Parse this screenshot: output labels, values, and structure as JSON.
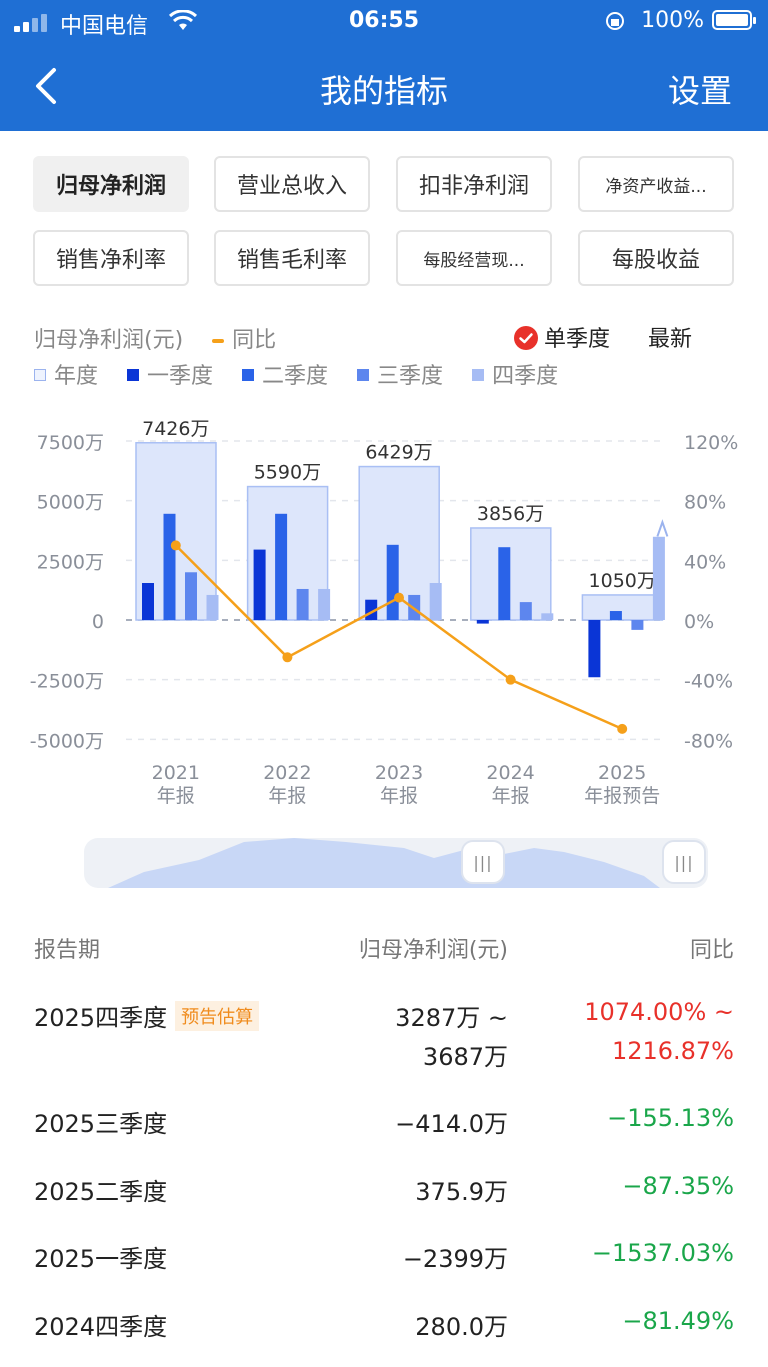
{
  "status_bar": {
    "carrier": "中国电信",
    "time": "06:55",
    "battery": "100%"
  },
  "nav": {
    "title": "我的指标",
    "settings_label": "设置"
  },
  "tabs": [
    {
      "label": "归母净利润",
      "active": true
    },
    {
      "label": "营业总收入"
    },
    {
      "label": "扣非净利润"
    },
    {
      "label": "净资产收益..."
    },
    {
      "label": "销售净利率"
    },
    {
      "label": "销售毛利率"
    },
    {
      "label": "每股经营现..."
    },
    {
      "label": "每股收益"
    }
  ],
  "legend": {
    "metric_label": "归母净利润(元)",
    "yoy_label": "同比",
    "single_quarter_label": "单季度",
    "latest_label": "最新",
    "items": [
      "年度",
      "一季度",
      "二季度",
      "三季度",
      "四季度"
    ]
  },
  "colors": {
    "header": "#1f6fd4",
    "annual": "#dde6fb",
    "q1": "#0a35d6",
    "q2": "#2a63e8",
    "q3": "#5d86ee",
    "q4": "#a6bcf4",
    "yoy_line": "#f5a01a",
    "red": "#e8312a",
    "green": "#1aa64a"
  },
  "chart_data": {
    "type": "bar",
    "categories": [
      "2021年报",
      "2022年报",
      "2023年报",
      "2024年报",
      "2025年报预告"
    ],
    "category_years": [
      "2021",
      "2022",
      "2023",
      "2024",
      "2025"
    ],
    "category_suffix": [
      "年报",
      "年报",
      "年报",
      "年报",
      "年报预告"
    ],
    "annual_labels": [
      "7426万",
      "5590万",
      "6429万",
      "3856万",
      "1050万"
    ],
    "series": [
      {
        "name": "年度",
        "values": [
          7426,
          5590,
          6429,
          3856,
          1050
        ]
      },
      {
        "name": "一季度",
        "values": [
          1550,
          2950,
          850,
          -150,
          -2399
        ]
      },
      {
        "name": "二季度",
        "values": [
          4450,
          4450,
          3150,
          3050,
          375.9
        ]
      },
      {
        "name": "三季度",
        "values": [
          2000,
          1300,
          1050,
          750,
          -414.0
        ]
      },
      {
        "name": "四季度",
        "values": [
          1050,
          1300,
          1550,
          280.0,
          3487
        ]
      },
      {
        "name": "同比",
        "axis": "right",
        "values": [
          50,
          -25,
          15,
          -40,
          -73
        ]
      }
    ],
    "ylim": [
      -5000,
      7500
    ],
    "y_ticks": [
      "7500万",
      "5000万",
      "2500万",
      "0",
      "-2500万",
      "-5000万"
    ],
    "y2lim": [
      -80,
      120
    ],
    "y2_ticks": [
      "120%",
      "80%",
      "40%",
      "0%",
      "-40%",
      "-80%"
    ],
    "grid": true
  },
  "table": {
    "headers": [
      "报告期",
      "归母净利润(元)",
      "同比"
    ],
    "rows": [
      {
        "period": "2025四季度",
        "badge": "预告估算",
        "value_line1": "3287万 ~",
        "value_line2": "3687万",
        "yoy_line1": "1074.00% ~",
        "yoy_line2": "1216.87%",
        "trend": "up"
      },
      {
        "period": "2025三季度",
        "value_line1": "−414.0万",
        "yoy_line1": "−155.13%",
        "trend": "down"
      },
      {
        "period": "2025二季度",
        "value_line1": "375.9万",
        "yoy_line1": "−87.35%",
        "trend": "down"
      },
      {
        "period": "2025一季度",
        "value_line1": "−2399万",
        "yoy_line1": "−1537.03%",
        "trend": "down"
      },
      {
        "period": "2024四季度",
        "value_line1": "280.0万",
        "yoy_line1": "−81.49%",
        "trend": "down"
      }
    ]
  }
}
